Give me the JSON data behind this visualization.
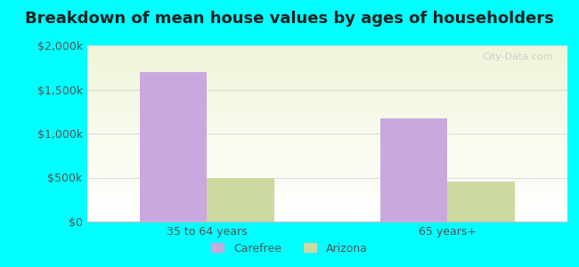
{
  "title": "Breakdown of mean house values by ages of householders",
  "categories": [
    "35 to 64 years",
    "65 years+"
  ],
  "series": {
    "Carefree": [
      1700000,
      1175000
    ],
    "Arizona": [
      500000,
      450000
    ]
  },
  "bar_colors": {
    "Carefree": "#c9a8e0",
    "Arizona": "#ccd9a0"
  },
  "ylim": [
    0,
    2000000
  ],
  "yticks": [
    0,
    500000,
    1000000,
    1500000,
    2000000
  ],
  "ytick_labels": [
    "$0",
    "$500k",
    "$1,000k",
    "$1,500k",
    "$2,000k"
  ],
  "background_outer": "#00ffff",
  "plot_bg_top": "#eef5d8",
  "plot_bg_bottom": "#ffffff",
  "title_fontsize": 13,
  "tick_label_color": "#555555",
  "grid_color": "#dddddd",
  "watermark": "City-Data.com",
  "bar_width": 0.28
}
